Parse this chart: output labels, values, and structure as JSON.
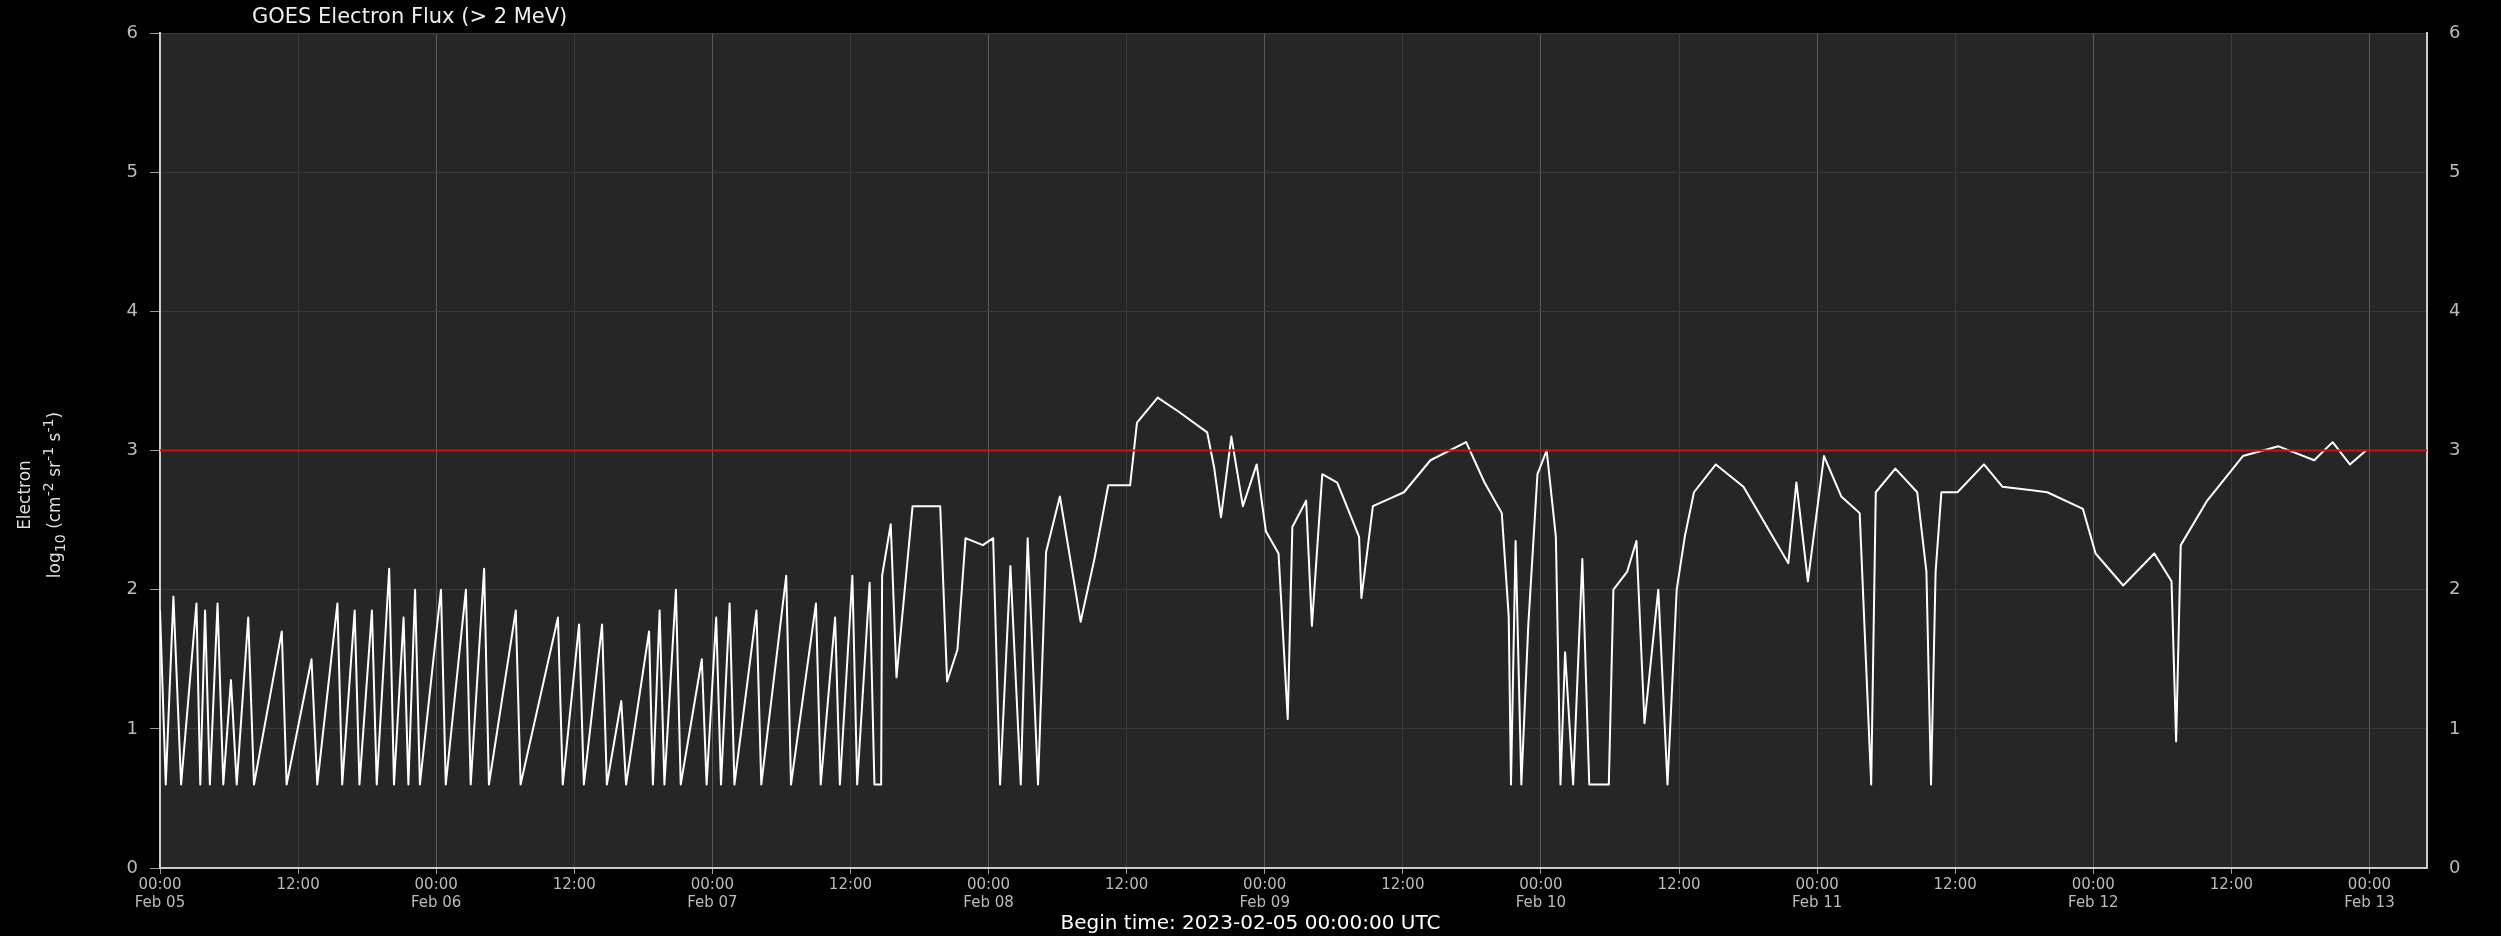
{
  "chart_data": {
    "type": "line",
    "title": "GOES Electron Flux (> 2 MeV)",
    "ylabel": "Electron\nlog$_{10}$ (cm$^{-2}$ sr$^{-1}$ s$^{-1}$)",
    "annotations": [
      "Begin time: 2023-02-05 00:00:00 UTC"
    ],
    "x": [
      "2023-02-05T00:00",
      "2023-02-05T00:30",
      "2023-02-05T01:10",
      "2023-02-05T01:50",
      "2023-02-05T03:10",
      "2023-02-05T03:30",
      "2023-02-05T03:55",
      "2023-02-05T04:20",
      "2023-02-05T05:00",
      "2023-02-05T05:30",
      "2023-02-05T06:10",
      "2023-02-05T06:40",
      "2023-02-05T07:40",
      "2023-02-05T08:10",
      "2023-02-05T10:35",
      "2023-02-05T11:00",
      "2023-02-05T13:10",
      "2023-02-05T13:40",
      "2023-02-05T15:25",
      "2023-02-05T15:50",
      "2023-02-05T16:55",
      "2023-02-05T17:20",
      "2023-02-05T18:25",
      "2023-02-05T18:50",
      "2023-02-05T19:55",
      "2023-02-05T20:20",
      "2023-02-05T21:10",
      "2023-02-05T21:35",
      "2023-02-05T22:10",
      "2023-02-05T22:35",
      "2023-02-06T00:25",
      "2023-02-06T00:50",
      "2023-02-06T02:35",
      "2023-02-06T03:00",
      "2023-02-06T04:10",
      "2023-02-06T04:35",
      "2023-02-06T06:55",
      "2023-02-06T07:20",
      "2023-02-06T10:35",
      "2023-02-06T11:00",
      "2023-02-06T12:25",
      "2023-02-06T12:50",
      "2023-02-06T14:25",
      "2023-02-06T14:50",
      "2023-02-06T16:05",
      "2023-02-06T16:30",
      "2023-02-06T18:30",
      "2023-02-06T18:50",
      "2023-02-06T19:25",
      "2023-02-06T19:50",
      "2023-02-06T20:50",
      "2023-02-06T21:15",
      "2023-02-06T23:05",
      "2023-02-06T23:30",
      "2023-02-07T00:20",
      "2023-02-07T00:45",
      "2023-02-07T01:30",
      "2023-02-07T01:55",
      "2023-02-07T03:50",
      "2023-02-07T04:15",
      "2023-02-07T06:25",
      "2023-02-07T06:50",
      "2023-02-07T09:00",
      "2023-02-07T09:25",
      "2023-02-07T10:40",
      "2023-02-07T11:05",
      "2023-02-07T12:10",
      "2023-02-07T12:35",
      "2023-02-07T13:40",
      "2023-02-07T14:05",
      "2023-02-07T14:40",
      "2023-02-07T14:45",
      "2023-02-07T15:30",
      "2023-02-07T16:00",
      "2023-02-07T17:24",
      "2023-02-07T19:48",
      "2023-02-07T20:24",
      "2023-02-07T21:18",
      "2023-02-07T22:00",
      "2023-02-07T23:30",
      "2023-02-08T00:24",
      "2023-02-08T01:00",
      "2023-02-08T01:54",
      "2023-02-08T02:48",
      "2023-02-08T03:24",
      "2023-02-08T04:18",
      "2023-02-08T05:00",
      "2023-02-08T06:12",
      "2023-02-08T08:00",
      "2023-02-08T09:12",
      "2023-02-08T10:24",
      "2023-02-08T12:18",
      "2023-02-08T12:54",
      "2023-02-08T14:42",
      "2023-02-08T16:30",
      "2023-02-08T19:00",
      "2023-02-08T19:36",
      "2023-02-08T20:12",
      "2023-02-08T21:06",
      "2023-02-08T22:06",
      "2023-02-08T23:18",
      "2023-02-09T00:06",
      "2023-02-09T01:12",
      "2023-02-09T02:00",
      "2023-02-09T02:24",
      "2023-02-09T03:36",
      "2023-02-09T04:06",
      "2023-02-09T05:00",
      "2023-02-09T06:18",
      "2023-02-09T08:12",
      "2023-02-09T08:24",
      "2023-02-09T09:24",
      "2023-02-09T12:06",
      "2023-02-09T14:24",
      "2023-02-09T17:30",
      "2023-02-09T19:06",
      "2023-02-09T20:36",
      "2023-02-09T21:12",
      "2023-02-09T21:24",
      "2023-02-09T21:48",
      "2023-02-09T22:18",
      "2023-02-09T22:54",
      "2023-02-09T23:42",
      "2023-02-10T00:30",
      "2023-02-10T01:18",
      "2023-02-10T01:42",
      "2023-02-10T02:06",
      "2023-02-10T02:48",
      "2023-02-10T03:36",
      "2023-02-10T04:12",
      "2023-02-10T05:54",
      "2023-02-10T06:18",
      "2023-02-10T07:30",
      "2023-02-10T08:18",
      "2023-02-10T09:00",
      "2023-02-10T10:12",
      "2023-02-10T11:00",
      "2023-02-10T11:48",
      "2023-02-10T12:30",
      "2023-02-10T13:18",
      "2023-02-10T15:12",
      "2023-02-10T17:36",
      "2023-02-10T21:30",
      "2023-02-10T22:12",
      "2023-02-10T23:12",
      "2023-02-11T00:36",
      "2023-02-11T02:06",
      "2023-02-11T03:42",
      "2023-02-11T04:42",
      "2023-02-11T05:06",
      "2023-02-11T06:48",
      "2023-02-11T08:42",
      "2023-02-11T09:30",
      "2023-02-11T09:54",
      "2023-02-11T10:18",
      "2023-02-11T10:48",
      "2023-02-11T12:12",
      "2023-02-11T14:30",
      "2023-02-11T16:06",
      "2023-02-11T20:00",
      "2023-02-11T23:06",
      "2023-02-12T00:12",
      "2023-02-12T02:36",
      "2023-02-12T05:18",
      "2023-02-12T06:48",
      "2023-02-12T07:12",
      "2023-02-12T07:36",
      "2023-02-12T09:54",
      "2023-02-12T13:00",
      "2023-02-12T16:06",
      "2023-02-12T19:12",
      "2023-02-12T20:48",
      "2023-02-12T22:18",
      "2023-02-12T23:42"
    ],
    "series": [
      {
        "color": "#ffffff",
        "values": [
          1.85,
          0.6,
          1.95,
          0.6,
          1.9,
          0.6,
          1.85,
          0.6,
          1.9,
          0.6,
          1.35,
          0.6,
          1.8,
          0.6,
          1.7,
          0.6,
          1.5,
          0.6,
          1.9,
          0.6,
          1.85,
          0.6,
          1.85,
          0.6,
          2.15,
          0.6,
          1.8,
          0.6,
          2.0,
          0.6,
          2.0,
          0.6,
          2.0,
          0.6,
          2.15,
          0.6,
          1.85,
          0.6,
          1.8,
          0.6,
          1.75,
          0.6,
          1.75,
          0.6,
          1.2,
          0.6,
          1.7,
          0.6,
          1.85,
          0.6,
          2.0,
          0.6,
          1.5,
          0.6,
          1.8,
          0.6,
          1.9,
          0.6,
          1.85,
          0.6,
          2.1,
          0.6,
          1.9,
          0.6,
          1.8,
          0.6,
          2.1,
          0.6,
          2.05,
          0.6,
          0.6,
          2.1,
          2.47,
          1.37,
          2.6,
          2.6,
          1.34,
          1.57,
          2.37,
          2.32,
          2.37,
          0.6,
          2.17,
          0.6,
          2.37,
          0.6,
          2.27,
          2.67,
          1.77,
          2.22,
          2.75,
          2.75,
          3.2,
          3.38,
          3.28,
          3.13,
          2.88,
          2.52,
          3.1,
          2.6,
          2.9,
          2.42,
          2.26,
          1.07,
          2.45,
          2.64,
          1.74,
          2.83,
          2.77,
          2.38,
          1.94,
          2.6,
          2.7,
          2.93,
          3.06,
          2.77,
          2.55,
          1.81,
          0.6,
          2.35,
          0.6,
          1.74,
          2.83,
          3.0,
          2.38,
          0.6,
          1.55,
          0.6,
          2.22,
          0.6,
          0.6,
          2.0,
          2.13,
          2.35,
          1.04,
          2.0,
          0.6,
          2.0,
          2.38,
          2.7,
          2.9,
          2.74,
          2.19,
          2.77,
          2.06,
          2.96,
          2.67,
          2.55,
          0.6,
          2.7,
          2.87,
          2.7,
          2.13,
          0.6,
          2.13,
          2.7,
          2.7,
          2.9,
          2.74,
          2.7,
          2.58,
          2.26,
          2.03,
          2.26,
          2.06,
          0.91,
          2.32,
          2.64,
          2.96,
          3.03,
          2.93,
          3.06,
          2.9,
          3.0
        ]
      }
    ],
    "xlim": [
      "2023-02-05T00:00",
      "2023-02-13T05:00"
    ],
    "xticks": [
      {
        "value": "2023-02-05T00:00",
        "label": "00:00\nFeb 05"
      },
      {
        "value": "2023-02-05T12:00",
        "label": "12:00"
      },
      {
        "value": "2023-02-06T00:00",
        "label": "00:00\nFeb 06"
      },
      {
        "value": "2023-02-06T12:00",
        "label": "12:00"
      },
      {
        "value": "2023-02-07T00:00",
        "label": "00:00\nFeb 07"
      },
      {
        "value": "2023-02-07T12:00",
        "label": "12:00"
      },
      {
        "value": "2023-02-08T00:00",
        "label": "00:00\nFeb 08"
      },
      {
        "value": "2023-02-08T12:00",
        "label": "12:00"
      },
      {
        "value": "2023-02-09T00:00",
        "label": "00:00\nFeb 09"
      },
      {
        "value": "2023-02-09T12:00",
        "label": "12:00"
      },
      {
        "value": "2023-02-10T00:00",
        "label": "00:00\nFeb 10"
      },
      {
        "value": "2023-02-10T12:00",
        "label": "12:00"
      },
      {
        "value": "2023-02-11T00:00",
        "label": "00:00\nFeb 11"
      },
      {
        "value": "2023-02-11T12:00",
        "label": "12:00"
      },
      {
        "value": "2023-02-12T00:00",
        "label": "00:00\nFeb 12"
      },
      {
        "value": "2023-02-12T12:00",
        "label": "12:00"
      },
      {
        "value": "2023-02-13T00:00",
        "label": "00:00\nFeb 13"
      }
    ],
    "ylim": [
      0,
      6
    ],
    "yticks": [
      0,
      1,
      2,
      3,
      4,
      5,
      6
    ],
    "y2lim": [
      0,
      6
    ],
    "y2ticks": [
      0,
      1,
      2,
      3,
      4,
      5,
      6
    ],
    "ref_lines": [
      {
        "axis": "y",
        "value": 3,
        "color": "#cc1111"
      }
    ],
    "grid": true,
    "legend": false,
    "marker": "none",
    "line_style": "solid"
  }
}
